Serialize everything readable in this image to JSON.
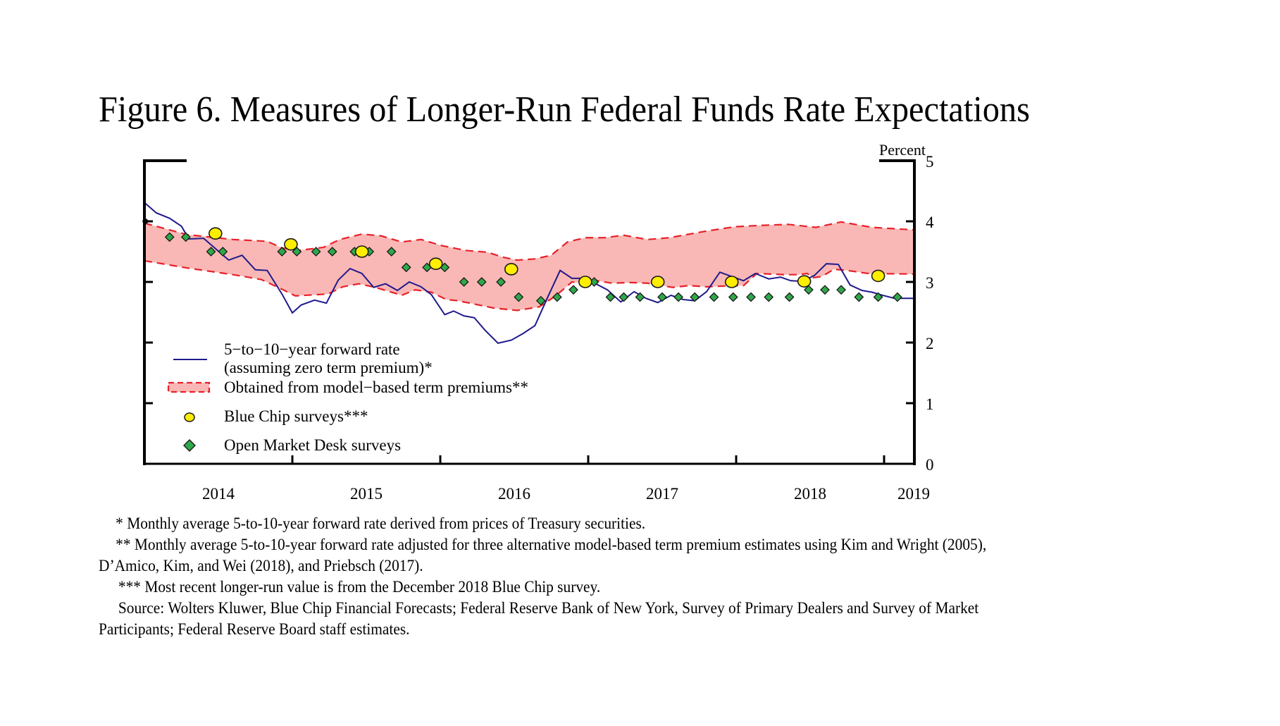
{
  "figure": {
    "title": "Figure 6.  Measures of Longer-Run Federal Funds Rate Expectations"
  },
  "chart_data": {
    "type": "line",
    "title": "Figure 6.  Measures of Longer-Run Federal Funds Rate Expectations",
    "ylabel": "Percent",
    "xlabel": "",
    "ylim": [
      0,
      5
    ],
    "xlim": [
      2014.0,
      2019.2
    ],
    "y_axis_side": "right",
    "yticks": [
      0,
      1,
      2,
      3,
      4,
      5
    ],
    "ytick_labels": [
      "0",
      "1",
      "2",
      "3",
      "4",
      "5"
    ],
    "xtick_labels": [
      "2014",
      "2015",
      "2016",
      "2017",
      "2018",
      "2019"
    ],
    "xtick_label_positions": [
      2014.5,
      2015.5,
      2016.5,
      2017.5,
      2018.5,
      2019.2
    ],
    "xtick_marks": [
      2015,
      2016,
      2017,
      2018,
      2019
    ],
    "grid": false,
    "legend_position": "bottom-left",
    "legend": [
      {
        "key": "forward_rate",
        "label_lines": [
          "5−to−10−year forward rate",
          "(assuming zero term premium)*"
        ],
        "symbol": "line"
      },
      {
        "key": "model_band",
        "label_lines": [
          "Obtained from model−based term premiums**"
        ],
        "symbol": "band"
      },
      {
        "key": "blue_chip",
        "label_lines": [
          "Blue Chip surveys***"
        ],
        "symbol": "circle"
      },
      {
        "key": "omd",
        "label_lines": [
          "Open Market Desk surveys"
        ],
        "symbol": "diamond"
      }
    ],
    "colors": {
      "forward_rate": "#1f1a8c",
      "band_fill": "#f9b8b5",
      "band_edge": "#e8202a",
      "blue_chip_fill": "#ffee00",
      "omd_fill": "#2fa84a",
      "marker_edge": "#1a1a1a"
    },
    "series": [
      {
        "name": "5-to-10-year forward rate (assuming zero term premium)",
        "key": "forward_rate",
        "x": [
          2014.0,
          2014.08,
          2014.17,
          2014.25,
          2014.3,
          2014.4,
          2014.57,
          2014.66,
          2014.75,
          2014.83,
          2014.93,
          2015.0,
          2015.06,
          2015.15,
          2015.23,
          2015.31,
          2015.39,
          2015.47,
          2015.55,
          2015.63,
          2015.71,
          2015.79,
          2015.87,
          2015.94,
          2016.03,
          2016.09,
          2016.16,
          2016.23,
          2016.3,
          2016.39,
          2016.48,
          2016.56,
          2016.64,
          2016.73,
          2016.81,
          2016.89,
          2016.98,
          2017.13,
          2017.22,
          2017.31,
          2017.39,
          2017.47,
          2017.56,
          2017.64,
          2017.72,
          2017.8,
          2017.89,
          2017.97,
          2018.05,
          2018.13,
          2018.22,
          2018.3,
          2018.37,
          2018.45,
          2018.53,
          2018.61,
          2018.69,
          2018.77,
          2018.85,
          2018.92,
          2018.99,
          2019.07,
          2019.14,
          2019.21
        ],
        "values": [
          4.31,
          4.14,
          4.05,
          3.92,
          3.71,
          3.72,
          3.36,
          3.44,
          3.2,
          3.19,
          2.8,
          2.49,
          2.62,
          2.7,
          2.65,
          3.03,
          3.22,
          3.14,
          2.91,
          2.97,
          2.86,
          3.0,
          2.92,
          2.79,
          2.46,
          2.52,
          2.44,
          2.41,
          2.21,
          1.99,
          2.04,
          2.15,
          2.28,
          2.77,
          3.19,
          3.06,
          3.06,
          2.87,
          2.67,
          2.84,
          2.73,
          2.66,
          2.78,
          2.71,
          2.69,
          2.84,
          3.16,
          3.09,
          3.02,
          3.14,
          3.05,
          3.08,
          3.02,
          3.01,
          3.11,
          3.3,
          3.29,
          2.95,
          2.86,
          2.83,
          2.78,
          2.73,
          2.73,
          2.73
        ]
      },
      {
        "name": "Obtained from model-based term premiums (upper)",
        "key": "band_upper",
        "x": [
          2014.0,
          2014.29,
          2014.6,
          2014.83,
          2014.93,
          2015.04,
          2015.21,
          2015.32,
          2015.47,
          2015.6,
          2015.74,
          2015.87,
          2016.01,
          2016.17,
          2016.32,
          2016.42,
          2016.52,
          2016.64,
          2016.75,
          2016.86,
          2016.98,
          2017.11,
          2017.24,
          2017.4,
          2017.55,
          2017.8,
          2017.99,
          2018.14,
          2018.35,
          2018.54,
          2018.71,
          2018.92,
          2019.21
        ],
        "values": [
          3.97,
          3.78,
          3.7,
          3.67,
          3.56,
          3.52,
          3.57,
          3.7,
          3.79,
          3.76,
          3.66,
          3.7,
          3.6,
          3.52,
          3.49,
          3.41,
          3.36,
          3.38,
          3.44,
          3.66,
          3.73,
          3.73,
          3.77,
          3.7,
          3.73,
          3.84,
          3.91,
          3.93,
          3.95,
          3.9,
          3.99,
          3.9,
          3.86
        ]
      },
      {
        "name": "Obtained from model-based term premiums (lower)",
        "key": "band_lower",
        "x": [
          2014.0,
          2014.29,
          2014.6,
          2014.79,
          2014.93,
          2015.02,
          2015.16,
          2015.24,
          2015.34,
          2015.45,
          2015.56,
          2015.74,
          2015.83,
          2015.94,
          2016.04,
          2016.12,
          2016.2,
          2016.36,
          2016.52,
          2016.67,
          2016.78,
          2016.89,
          2017.0,
          2017.06,
          2017.16,
          2017.29,
          2017.4,
          2017.57,
          2017.68,
          2017.8,
          2017.89,
          2018.05,
          2018.14,
          2018.33,
          2018.42,
          2018.48,
          2018.52,
          2018.58,
          2018.66,
          2018.75,
          2018.89,
          2019.21
        ],
        "values": [
          3.35,
          3.23,
          3.12,
          3.04,
          2.88,
          2.77,
          2.79,
          2.8,
          2.92,
          2.97,
          2.91,
          2.78,
          2.87,
          2.83,
          2.71,
          2.69,
          2.65,
          2.57,
          2.53,
          2.59,
          2.77,
          3.0,
          2.97,
          3.02,
          2.98,
          2.99,
          2.98,
          2.91,
          2.94,
          2.92,
          2.93,
          2.94,
          3.14,
          3.12,
          3.12,
          3.14,
          3.07,
          3.09,
          3.21,
          3.19,
          3.14,
          3.13
        ]
      },
      {
        "name": "Blue Chip surveys",
        "key": "blue_chip",
        "x": [
          2014.48,
          2014.99,
          2015.47,
          2015.97,
          2016.48,
          2016.98,
          2017.47,
          2017.97,
          2018.46,
          2018.96
        ],
        "values": [
          3.8,
          3.62,
          3.5,
          3.3,
          3.21,
          3.0,
          3.0,
          3.0,
          3.01,
          3.1
        ]
      },
      {
        "name": "Open Market Desk surveys",
        "key": "omd",
        "x": [
          2014.17,
          2014.28,
          2014.45,
          2014.53,
          2014.93,
          2015.03,
          2015.16,
          2015.27,
          2015.42,
          2015.52,
          2015.67,
          2015.77,
          2015.91,
          2016.03,
          2016.16,
          2016.28,
          2016.41,
          2016.53,
          2016.68,
          2016.79,
          2016.9,
          2017.04,
          2017.15,
          2017.24,
          2017.35,
          2017.5,
          2017.61,
          2017.72,
          2017.85,
          2017.98,
          2018.1,
          2018.22,
          2018.36,
          2018.49,
          2018.6,
          2018.71,
          2018.83,
          2018.96,
          2019.09
        ],
        "values": [
          3.74,
          3.74,
          3.5,
          3.5,
          3.5,
          3.5,
          3.5,
          3.5,
          3.5,
          3.5,
          3.5,
          3.24,
          3.24,
          3.24,
          3.0,
          3.0,
          3.0,
          2.75,
          2.69,
          2.75,
          2.87,
          3.0,
          2.75,
          2.75,
          2.75,
          2.75,
          2.75,
          2.75,
          2.75,
          2.75,
          2.75,
          2.75,
          2.75,
          2.87,
          2.87,
          2.87,
          2.75,
          2.75,
          2.75
        ]
      }
    ]
  },
  "footnotes": {
    "note1": "* Monthly average 5-to-10-year forward rate derived from prices of Treasury securities.",
    "note2_line1": "** Monthly average 5-to-10-year forward rate adjusted for three alternative model-based term premium estimates using Kim and Wright (2005),",
    "note2_line2": "D’Amico, Kim, and Wei (2018), and Priebsch (2017).",
    "note3": "*** Most recent longer-run value is from the December 2018 Blue Chip survey.",
    "source_line1": "Source: Wolters Kluwer, Blue Chip Financial Forecasts; Federal Reserve Bank of New York, Survey of Primary Dealers and Survey of Market",
    "source_line2": "Participants; Federal Reserve Board staff estimates."
  }
}
